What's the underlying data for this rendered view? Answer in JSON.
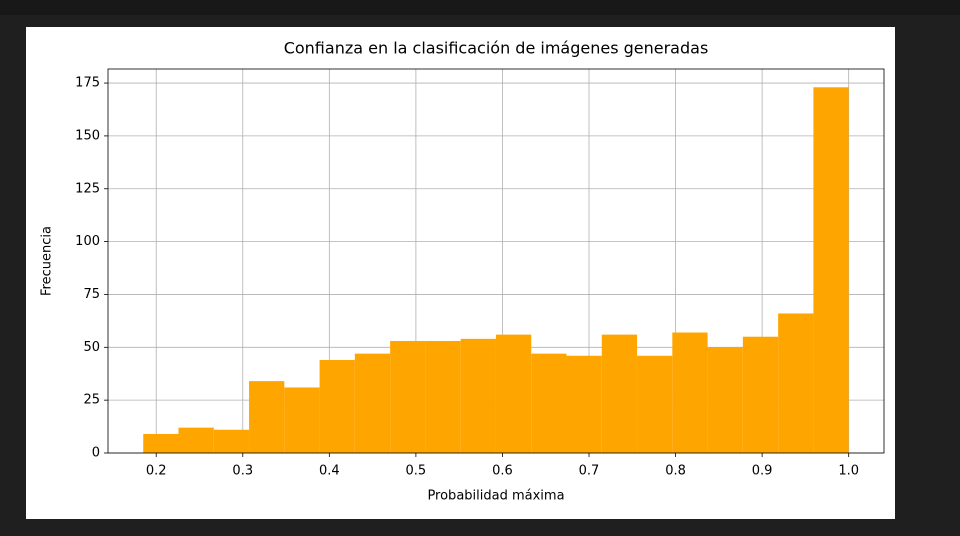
{
  "chart_data": {
    "type": "histogram",
    "title": "Confianza en la clasificación de imágenes generadas",
    "xlabel": "Probabilidad máxima",
    "ylabel": "Frecuencia",
    "bins": [
      0.185,
      0.22575,
      0.2665,
      0.30725,
      0.348,
      0.38875,
      0.4295,
      0.47025,
      0.511,
      0.55175,
      0.5925,
      0.63325,
      0.674,
      0.71475,
      0.7555,
      0.79625,
      0.837,
      0.87775,
      0.9185,
      0.95925,
      1.0
    ],
    "counts": [
      9,
      12,
      11,
      34,
      31,
      44,
      47,
      53,
      53,
      54,
      56,
      47,
      46,
      56,
      46,
      57,
      50,
      55,
      66,
      173
    ],
    "color": "#ffa500",
    "xlim": [
      0.1443,
      1.0408
    ],
    "ylim": [
      0,
      181.65
    ],
    "xticks": [
      0.2,
      0.3,
      0.4,
      0.5,
      0.6,
      0.7,
      0.8,
      0.9,
      {
        "value": 1,
        "label": "1.0"
      }
    ],
    "yticks": [
      0,
      25,
      50,
      75,
      100,
      125,
      150,
      175
    ],
    "grid": true
  }
}
